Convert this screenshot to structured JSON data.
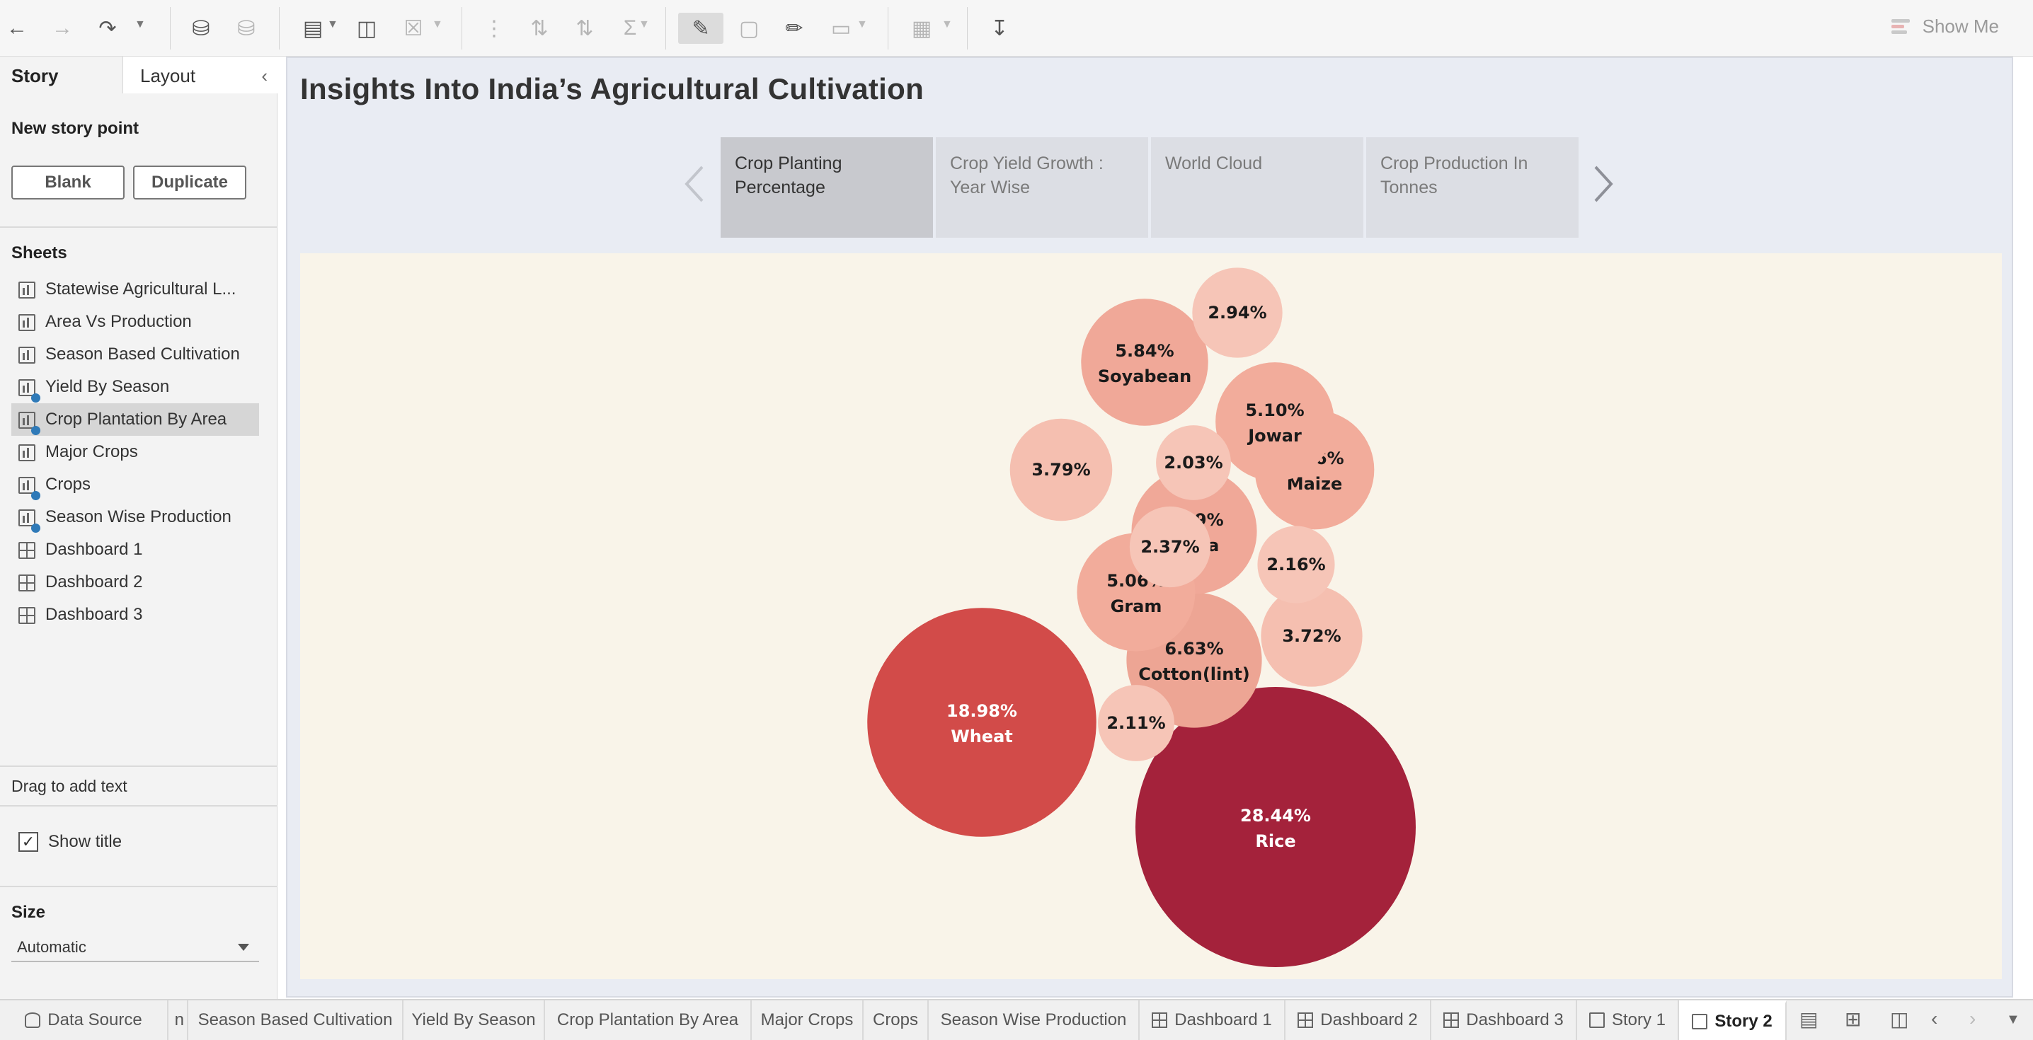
{
  "toolbar": {
    "show_me_label": "Show Me"
  },
  "left_panel": {
    "tabs": {
      "story": "Story",
      "layout": "Layout"
    },
    "new_story_point_label": "New story point",
    "blank_button": "Blank",
    "duplicate_button": "Duplicate",
    "sheets_header": "Sheets",
    "sheets": [
      {
        "label": "Statewise Agricultural L...",
        "icon": "worksheet-icon"
      },
      {
        "label": "Area Vs Production",
        "icon": "worksheet-icon"
      },
      {
        "label": "Season Based Cultivation",
        "icon": "worksheet-icon"
      },
      {
        "label": "Yield By Season",
        "icon": "worksheet-used-icon"
      },
      {
        "label": "Crop Plantation By Area",
        "icon": "worksheet-used-icon"
      },
      {
        "label": "Major Crops",
        "icon": "worksheet-icon"
      },
      {
        "label": "Crops",
        "icon": "worksheet-used-icon"
      },
      {
        "label": "Season Wise Production",
        "icon": "worksheet-used-icon"
      },
      {
        "label": "Dashboard 1",
        "icon": "dashboard-icon"
      },
      {
        "label": "Dashboard 2",
        "icon": "dashboard-icon"
      },
      {
        "label": "Dashboard 3",
        "icon": "dashboard-icon"
      }
    ],
    "drag_text_label": "Drag to add text",
    "show_title_label": "Show title",
    "size_header": "Size",
    "size_value": "Automatic"
  },
  "story": {
    "title": "Insights Into India’s Agricultural Cultivation",
    "points": [
      "Crop Planting Percentage",
      "Crop Yield Growth : Year Wise",
      "World Cloud",
      "Crop Production In Tonnes"
    ]
  },
  "chart_data": {
    "type": "bubble",
    "title": "",
    "bubbles": [
      {
        "label": "Rice",
        "value": 28.44,
        "value_text": "28.44%",
        "color": "#a4223b"
      },
      {
        "label": "Wheat",
        "value": 18.98,
        "value_text": "18.98%",
        "color": "#d24b49"
      },
      {
        "label": "Cotton(lint)",
        "value": 6.63,
        "value_text": "6.63%",
        "color": "#eda594"
      },
      {
        "label": "Soyabean",
        "value": 5.84,
        "value_text": "5.84%",
        "color": "#f0a898"
      },
      {
        "label": "Bajra",
        "value": 5.69,
        "value_text": "5.69%",
        "color": "#f0a898"
      },
      {
        "label": "Maize",
        "value": 5.16,
        "value_text": "5.16%",
        "color": "#f2ac9b"
      },
      {
        "label": "Jowar",
        "value": 5.1,
        "value_text": "5.10%",
        "color": "#f2ac9b"
      },
      {
        "label": "Gram",
        "value": 5.06,
        "value_text": "5.06%",
        "color": "#f2ac9b"
      },
      {
        "label": "",
        "value": 3.79,
        "value_text": "3.79%",
        "color": "#f5bfb0"
      },
      {
        "label": "",
        "value": 3.72,
        "value_text": "3.72%",
        "color": "#f5bfb0"
      },
      {
        "label": "",
        "value": 2.94,
        "value_text": "2.94%",
        "color": "#f6c5b7"
      },
      {
        "label": "",
        "value": 2.37,
        "value_text": "2.37%",
        "color": "#f6c5b7"
      },
      {
        "label": "",
        "value": 2.16,
        "value_text": "2.16%",
        "color": "#f6c5b7"
      },
      {
        "label": "",
        "value": 2.11,
        "value_text": "2.11%",
        "color": "#f6c5b7"
      },
      {
        "label": "",
        "value": 2.03,
        "value_text": "2.03%",
        "color": "#f6c5b7"
      }
    ]
  },
  "bottom_tabs": [
    {
      "label": "Data Source",
      "icon": "database-icon"
    },
    {
      "label": "n",
      "icon": ""
    },
    {
      "label": "Season Based Cultivation",
      "icon": ""
    },
    {
      "label": "Yield By Season",
      "icon": ""
    },
    {
      "label": "Crop Plantation By Area",
      "icon": ""
    },
    {
      "label": "Major Crops",
      "icon": ""
    },
    {
      "label": "Crops",
      "icon": ""
    },
    {
      "label": "Season Wise Production",
      "icon": ""
    },
    {
      "label": "Dashboard 1",
      "icon": "dashboard-icon"
    },
    {
      "label": "Dashboard 2",
      "icon": "dashboard-icon"
    },
    {
      "label": "Dashboard 3",
      "icon": "dashboard-icon"
    },
    {
      "label": "Story 1",
      "icon": "story-icon"
    },
    {
      "label": "Story 2",
      "icon": "story-icon"
    }
  ]
}
